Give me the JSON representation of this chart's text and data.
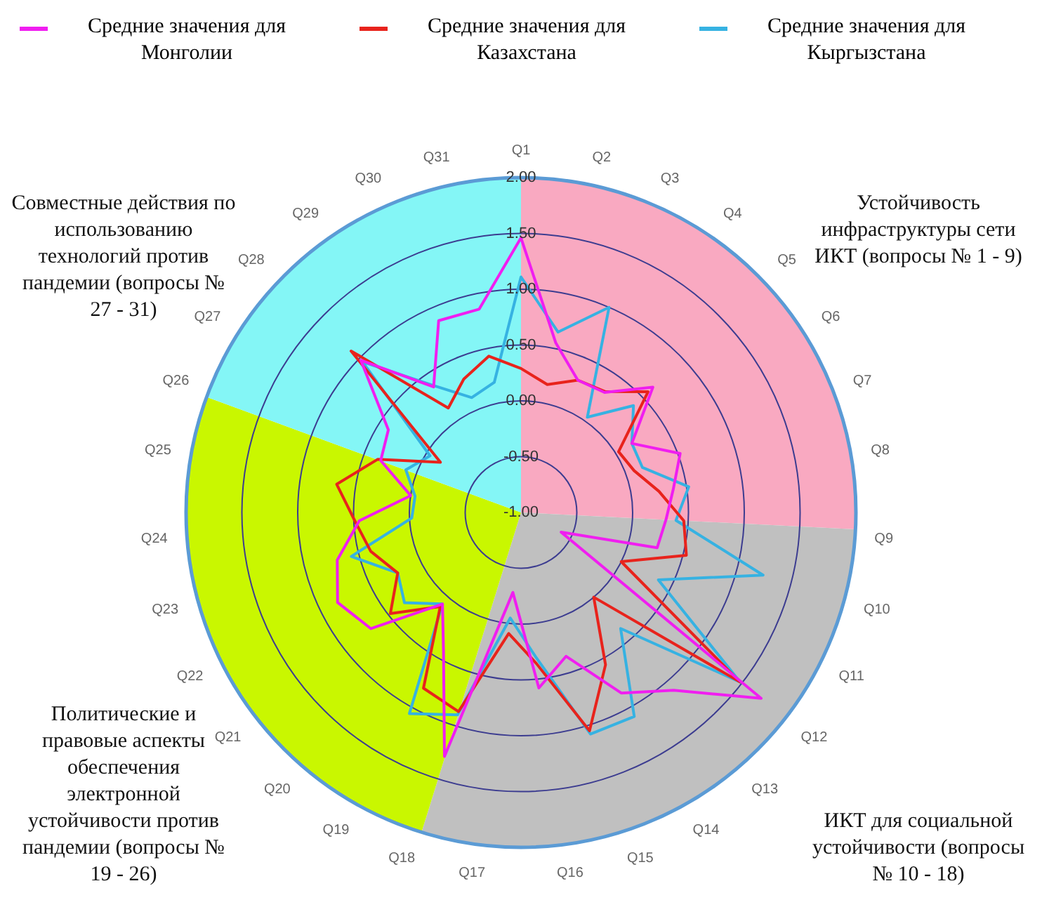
{
  "chart_data": [
    {
      "type": "radar",
      "categories": [
        "Q1",
        "Q2",
        "Q3",
        "Q4",
        "Q5",
        "Q6",
        "Q7",
        "Q8",
        "Q9",
        "Q10",
        "Q11",
        "Q12",
        "Q13",
        "Q14",
        "Q15",
        "Q16",
        "Q17",
        "Q18",
        "Q19",
        "Q20",
        "Q21",
        "Q22",
        "Q23",
        "Q24",
        "Q25",
        "Q26",
        "Q27",
        "Q28",
        "Q29",
        "Q30",
        "Q31"
      ],
      "series": [
        {
          "name": "Средние значения для Монголии",
          "color": "#f01ef0",
          "values": [
            1.46,
            0.55,
            0.29,
            0.31,
            0.63,
            0.17,
            0.52,
            0.38,
            0.3,
            0.26,
            -0.6,
            1.72,
            1.1,
            0.85,
            0.35,
            0.58,
            -0.28,
            1.29,
            0.43,
            0.08,
            0.7,
            0.83,
            0.7,
            0.45,
            0.0,
            0.34,
            0.4,
            0.98,
            0.37,
            0.87,
            0.86
          ]
        },
        {
          "name": "Средние значения для Казахстана",
          "color": "#e8231c",
          "values": [
            0.29,
            0.17,
            0.29,
            0.32,
            0.57,
            0.03,
            0.08,
            0.25,
            0.46,
            0.53,
            0.0,
            1.48,
            0.0,
            0.56,
            1.05,
            0.36,
            0.09,
            0.87,
            0.8,
            0.11,
            0.48,
            0.23,
            0.39,
            0.49,
            0.67,
            0.37,
            -0.15,
            1.1,
            0.14,
            0.3,
            0.43
          ]
        },
        {
          "name": "Средние значения для Кыргызстана",
          "color": "#36b2e2",
          "values": [
            1.11,
            0.65,
            1.0,
            0.04,
            0.39,
            0.17,
            0.16,
            0.52,
            0.39,
            1.24,
            0.37,
            1.48,
            0.37,
            1.09,
            1.08,
            0.3,
            -0.05,
            0.9,
            1.06,
            0.08,
            0.32,
            0.23,
            0.57,
            -0.02,
            -0.04,
            0.1,
            -0.04,
            0.96,
            0.39,
            0.12,
            0.19
          ]
        }
      ],
      "ylim": [
        -1,
        2
      ],
      "yticks": [
        {
          "value": -1,
          "label": "-1.00"
        },
        {
          "value": -0.5,
          "label": "-0.50"
        },
        {
          "value": 0,
          "label": "0.00"
        },
        {
          "value": 0.5,
          "label": "0.50"
        },
        {
          "value": 1,
          "label": "1.00"
        },
        {
          "value": 1.5,
          "label": "1.50"
        },
        {
          "value": 2,
          "label": "2.00"
        }
      ],
      "grid": true,
      "legend": "top",
      "marker": "none",
      "line_style": "solid"
    },
    {
      "type": "pie",
      "categories": [
        "Устойчивость инфраструктуры сети ИКТ (вопросы № 1 - 9)",
        "ИКТ для социальной устойчивости (вопросы № 10 - 18)",
        "Политические и правовые аспекты обеспечения электронной устойчивости против пандемии (вопросы № 19 - 26)",
        "Совместные действия по использованию технологий против пандемии (вопросы № 27 - 31)"
      ],
      "values": [
        25.8,
        29.0,
        25.8,
        19.4
      ],
      "colors": [
        "#f9a9c1",
        "#c0c0c0",
        "#c9f700",
        "#84f6f6"
      ]
    }
  ]
}
